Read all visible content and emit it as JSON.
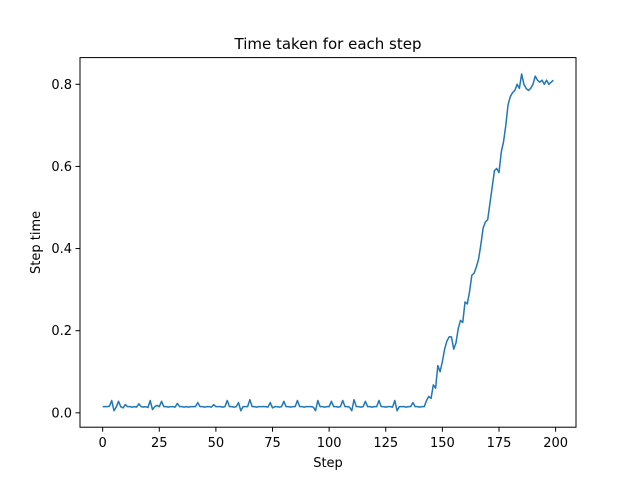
{
  "chart_data": {
    "type": "line",
    "title": "Time taken for each step",
    "xlabel": "Step",
    "ylabel": "Step time",
    "xlim": [
      -10,
      209
    ],
    "ylim": [
      -0.035,
      0.865
    ],
    "xticks": [
      0,
      25,
      50,
      75,
      100,
      125,
      150,
      175,
      200
    ],
    "xtick_labels": [
      "0",
      "25",
      "50",
      "75",
      "100",
      "125",
      "150",
      "175",
      "200"
    ],
    "yticks": [
      0.0,
      0.2,
      0.4,
      0.6,
      0.8
    ],
    "ytick_labels": [
      "0.0",
      "0.2",
      "0.4",
      "0.6",
      "0.8"
    ],
    "grid": false,
    "color": "#1f77b4",
    "series": [
      {
        "values": [
          0.015,
          0.015,
          0.015,
          0.016,
          0.03,
          0.005,
          0.014,
          0.028,
          0.015,
          0.012,
          0.02,
          0.015,
          0.015,
          0.014,
          0.015,
          0.014,
          0.022,
          0.015,
          0.014,
          0.015,
          0.013,
          0.03,
          0.008,
          0.015,
          0.018,
          0.015,
          0.028,
          0.015,
          0.015,
          0.014,
          0.015,
          0.015,
          0.014,
          0.023,
          0.015,
          0.015,
          0.014,
          0.015,
          0.014,
          0.015,
          0.015,
          0.015,
          0.025,
          0.015,
          0.015,
          0.014,
          0.015,
          0.015,
          0.014,
          0.02,
          0.015,
          0.015,
          0.015,
          0.014,
          0.015,
          0.03,
          0.015,
          0.015,
          0.014,
          0.015,
          0.025,
          0.005,
          0.015,
          0.015,
          0.015,
          0.032,
          0.015,
          0.015,
          0.014,
          0.015,
          0.015,
          0.015,
          0.015,
          0.014,
          0.025,
          0.012,
          0.015,
          0.015,
          0.014,
          0.015,
          0.028,
          0.015,
          0.015,
          0.014,
          0.015,
          0.015,
          0.03,
          0.015,
          0.015,
          0.014,
          0.015,
          0.015,
          0.015,
          0.014,
          0.005,
          0.03,
          0.015,
          0.015,
          0.014,
          0.015,
          0.015,
          0.028,
          0.015,
          0.015,
          0.014,
          0.015,
          0.03,
          0.015,
          0.015,
          0.014,
          0.005,
          0.032,
          0.015,
          0.015,
          0.014,
          0.015,
          0.028,
          0.015,
          0.015,
          0.014,
          0.015,
          0.015,
          0.03,
          0.015,
          0.015,
          0.014,
          0.015,
          0.015,
          0.014,
          0.03,
          0.005,
          0.015,
          0.015,
          0.015,
          0.014,
          0.015,
          0.015,
          0.025,
          0.015,
          0.015,
          0.014,
          0.015,
          0.015,
          0.03,
          0.04,
          0.035,
          0.068,
          0.06,
          0.115,
          0.1,
          0.125,
          0.155,
          0.175,
          0.185,
          0.185,
          0.155,
          0.17,
          0.205,
          0.225,
          0.22,
          0.27,
          0.265,
          0.295,
          0.335,
          0.34,
          0.355,
          0.375,
          0.41,
          0.45,
          0.465,
          0.47,
          0.51,
          0.55,
          0.59,
          0.595,
          0.585,
          0.635,
          0.66,
          0.7,
          0.75,
          0.77,
          0.78,
          0.785,
          0.8,
          0.79,
          0.825,
          0.8,
          0.79,
          0.785,
          0.79,
          0.8,
          0.82,
          0.81,
          0.805,
          0.81,
          0.8,
          0.81,
          0.8,
          0.805,
          0.81
        ]
      }
    ]
  }
}
